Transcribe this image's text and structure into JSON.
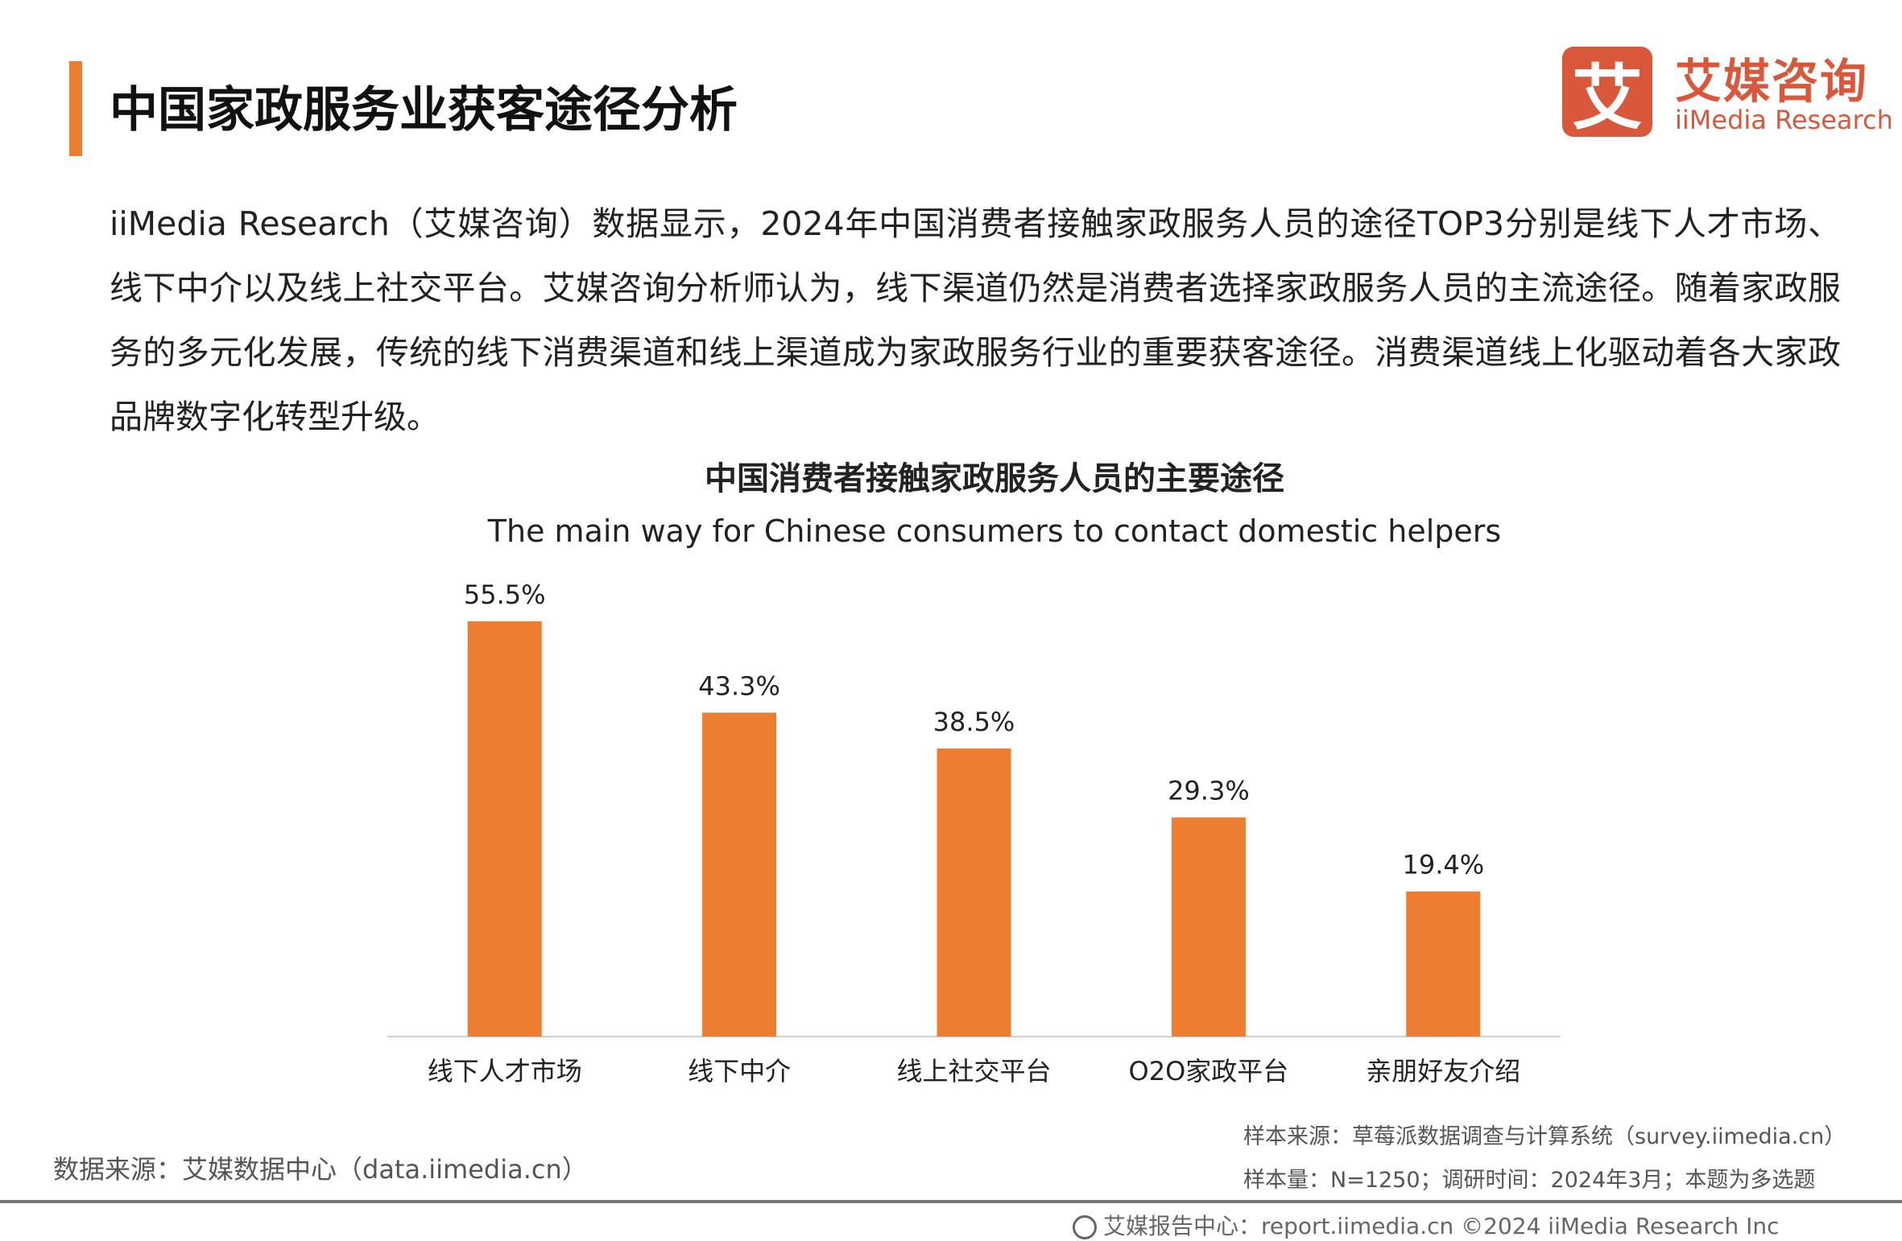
{
  "header": {
    "title": "中国家政服务业获客途径分析"
  },
  "logo": {
    "mark": "艾",
    "cn": "艾媒咨询",
    "en": "iiMedia Research"
  },
  "paragraph": "iiMedia Research（艾媒咨询）数据显示，2024年中国消费者接触家政服务人员的途径TOP3分别是线下人才市场、线下中介以及线上社交平台。艾媒咨询分析师认为，线下渠道仍然是消费者选择家政服务人员的主流途径。随着家政服务的多元化发展，传统的线下消费渠道和线上渠道成为家政服务行业的重要获客途径。消费渠道线上化驱动着各大家政品牌数字化转型升级。",
  "chart_data": {
    "type": "bar",
    "title": "中国消费者接触家政服务人员的主要途径",
    "subtitle": "The main way for Chinese consumers to contact domestic helpers",
    "categories": [
      "线下人才市场",
      "线下中介",
      "线上社交平台",
      "O2O家政平台",
      "亲朋好友介绍"
    ],
    "values": [
      55.5,
      43.3,
      38.5,
      29.3,
      19.4
    ],
    "labels": [
      "55.5%",
      "43.3%",
      "38.5%",
      "29.3%",
      "19.4%"
    ],
    "ylim": [
      0,
      60
    ],
    "color": "#ed7d31",
    "grid": false
  },
  "footer": {
    "source_left": "数据来源：艾媒数据中心（data.iimedia.cn）",
    "sample_source": "样本来源：草莓派数据调查与计算系统（survey.iimedia.cn）",
    "sample_info": "样本量：N=1250；调研时间：2024年3月；本题为多选题",
    "report": "艾媒报告中心：report.iimedia.cn  ©2024  iiMedia Research  Inc"
  }
}
